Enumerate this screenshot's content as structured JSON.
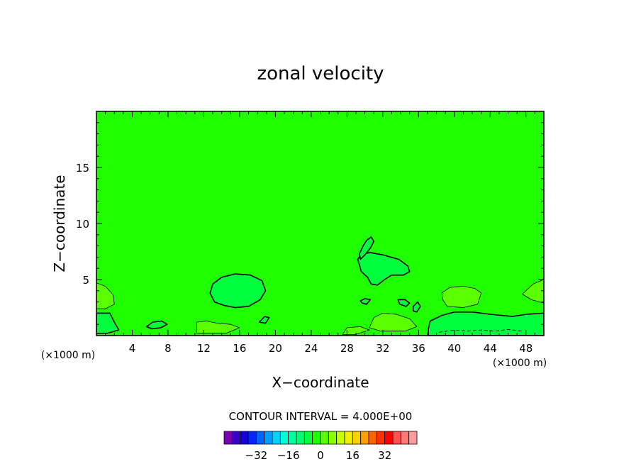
{
  "chart_data": {
    "type": "heatmap",
    "title": "zonal velocity",
    "xlabel": "X−coordinate",
    "ylabel": "Z−coordinate",
    "x_unit": "(×1000 m)",
    "z_unit": "(×1000 m)",
    "xlim": [
      0,
      50
    ],
    "ylim": [
      0,
      20
    ],
    "x_ticks": [
      4,
      8,
      12,
      16,
      20,
      24,
      28,
      32,
      36,
      40,
      44,
      48
    ],
    "x_tick_labels": [
      "4",
      "8",
      "12",
      "16",
      "20",
      "24",
      "28",
      "32",
      "36",
      "40",
      "44",
      "48"
    ],
    "y_ticks": [
      5,
      10,
      15
    ],
    "y_tick_labels": [
      "5",
      "10",
      "15"
    ],
    "background_color": "#1fff00",
    "contour_interval_text": "CONTOUR INTERVAL = 4.000E+00",
    "colorbar": {
      "colors": [
        "#7a00b4",
        "#3a00cc",
        "#1800d8",
        "#0028ff",
        "#0064ff",
        "#00a0ff",
        "#00d2ff",
        "#00ffd8",
        "#00ffa0",
        "#00ff6e",
        "#00ff3c",
        "#1fff00",
        "#5aff00",
        "#8cff00",
        "#c8ff00",
        "#f0f000",
        "#ffd000",
        "#ffa000",
        "#ff6400",
        "#ff3000",
        "#ff0000",
        "#ff5050",
        "#ff7878",
        "#ff9c9c"
      ],
      "tick_values": [
        -32,
        -16,
        0,
        16,
        32
      ],
      "tick_labels": [
        "−32",
        "−16",
        "0",
        "16",
        "32"
      ],
      "min": -48,
      "max": 48
    },
    "regions": [
      {
        "level": 4,
        "color": "#5aff00",
        "points": [
          [
            0,
            4.7
          ],
          [
            1,
            4.4
          ],
          [
            1.9,
            3.6
          ],
          [
            2,
            2.8
          ],
          [
            1,
            2.4
          ],
          [
            0,
            2.4
          ]
        ]
      },
      {
        "level": 4,
        "color": "#5aff00",
        "points": [
          [
            38.6,
            3.8
          ],
          [
            39.5,
            4.3
          ],
          [
            41,
            4.4
          ],
          [
            42.3,
            4.2
          ],
          [
            43,
            3.8
          ],
          [
            42.6,
            2.8
          ],
          [
            41,
            2.5
          ],
          [
            39.2,
            2.6
          ],
          [
            38.7,
            3.2
          ]
        ]
      },
      {
        "level": 4,
        "color": "#5aff00",
        "points": [
          [
            47.6,
            3.7
          ],
          [
            48.8,
            4.6
          ],
          [
            50,
            5
          ],
          [
            50,
            2.9
          ],
          [
            48.6,
            3.2
          ]
        ]
      },
      {
        "level": 4,
        "color": "#5aff00",
        "points": [
          [
            31,
            1.6
          ],
          [
            32,
            2
          ],
          [
            33.5,
            1.9
          ],
          [
            35,
            1.5
          ],
          [
            35.8,
            0.8
          ],
          [
            34.5,
            0.4
          ],
          [
            31.8,
            0.4
          ],
          [
            30.5,
            0.7
          ]
        ]
      },
      {
        "level": 4,
        "color": "#5aff00",
        "points": [
          [
            11.2,
            1.2
          ],
          [
            12.3,
            1.3
          ],
          [
            13.5,
            1.1
          ],
          [
            15,
            1
          ],
          [
            16,
            0.7
          ],
          [
            14.5,
            0.2
          ],
          [
            11.2,
            0.2
          ]
        ]
      },
      {
        "level": 4,
        "color": "#5aff00",
        "points": [
          [
            28,
            0.7
          ],
          [
            29.5,
            0.8
          ],
          [
            30.5,
            0.5
          ],
          [
            29,
            0.1
          ],
          [
            27.5,
            0.1
          ]
        ]
      },
      {
        "level": -4,
        "color": "#00ff3c",
        "points": [
          [
            0,
            2
          ],
          [
            1.5,
            2
          ],
          [
            2,
            1.2
          ],
          [
            2.5,
            0.5
          ],
          [
            1.2,
            0.2
          ],
          [
            0,
            0.2
          ]
        ]
      },
      {
        "level": -4,
        "color": "#00ff3c",
        "points": [
          [
            37.3,
            1.3
          ],
          [
            38.6,
            1.8
          ],
          [
            40,
            2.1
          ],
          [
            42,
            2.1
          ],
          [
            44,
            1.9
          ],
          [
            46.5,
            1.7
          ],
          [
            48,
            1.9
          ],
          [
            50,
            2
          ],
          [
            50,
            0
          ],
          [
            37.1,
            0
          ],
          [
            37.1,
            0.6
          ]
        ]
      },
      {
        "level": -4,
        "color": "#00ff3c",
        "points": [
          [
            12.7,
            3.8
          ],
          [
            13,
            4.6
          ],
          [
            14,
            5.2
          ],
          [
            15.5,
            5.5
          ],
          [
            17.2,
            5.4
          ],
          [
            18.5,
            4.9
          ],
          [
            18.9,
            4
          ],
          [
            18.3,
            3.2
          ],
          [
            17,
            2.6
          ],
          [
            15.5,
            2.5
          ],
          [
            14.2,
            2.7
          ],
          [
            13.2,
            3
          ]
        ]
      },
      {
        "level": -4,
        "color": "#00ff3c",
        "points": [
          [
            29.2,
            6.8
          ],
          [
            29.6,
            7.3
          ],
          [
            30.6,
            7.4
          ],
          [
            32,
            7.2
          ],
          [
            33.8,
            6.8
          ],
          [
            34.8,
            6.2
          ],
          [
            35,
            5.7
          ],
          [
            34.3,
            5.4
          ],
          [
            33,
            5.4
          ],
          [
            32.2,
            5
          ],
          [
            31.4,
            4.5
          ],
          [
            30.7,
            4.6
          ],
          [
            30.3,
            5.2
          ],
          [
            29.6,
            5.7
          ]
        ]
      },
      {
        "level": -4,
        "color": "#00ff3c",
        "points": [
          [
            29.4,
            7.3
          ],
          [
            29.8,
            8
          ],
          [
            30.2,
            8.5
          ],
          [
            30.7,
            8.8
          ],
          [
            31,
            8.4
          ],
          [
            30.6,
            7.8
          ],
          [
            30,
            7.2
          ],
          [
            29.5,
            6.8
          ]
        ]
      },
      {
        "level": -4,
        "color": "#00ff3c",
        "points": [
          [
            5.6,
            0.8
          ],
          [
            6.3,
            1.2
          ],
          [
            7.3,
            1.3
          ],
          [
            7.9,
            1
          ],
          [
            7.2,
            0.7
          ],
          [
            6.2,
            0.6
          ]
        ]
      },
      {
        "level": -4,
        "color": "#00ff3c",
        "points": [
          [
            18.2,
            1.2
          ],
          [
            18.8,
            1.7
          ],
          [
            19.3,
            1.6
          ],
          [
            18.9,
            1.1
          ]
        ]
      },
      {
        "level": -4,
        "color": "#00ff3c",
        "points": [
          [
            29.5,
            3.1
          ],
          [
            30,
            3.3
          ],
          [
            30.6,
            3.2
          ],
          [
            30.2,
            2.8
          ],
          [
            29.7,
            2.9
          ]
        ]
      },
      {
        "level": -4,
        "color": "#00ff3c",
        "points": [
          [
            33.7,
            3.2
          ],
          [
            34.5,
            3.2
          ],
          [
            35,
            2.9
          ],
          [
            34.6,
            2.6
          ],
          [
            33.9,
            2.8
          ]
        ]
      },
      {
        "level": -4,
        "color": "#00ff3c",
        "points": [
          [
            35.4,
            2.6
          ],
          [
            35.9,
            3
          ],
          [
            36.2,
            2.6
          ],
          [
            35.8,
            2.1
          ],
          [
            35.4,
            2.2
          ]
        ]
      }
    ],
    "dashed_segments": [
      {
        "level": -8,
        "points": [
          [
            38.3,
            0.3
          ],
          [
            40,
            0.5
          ],
          [
            41.5,
            0.4
          ],
          [
            43,
            0.5
          ],
          [
            44.5,
            0.4
          ],
          [
            46,
            0.55
          ],
          [
            47.5,
            0.4
          ]
        ]
      }
    ]
  }
}
